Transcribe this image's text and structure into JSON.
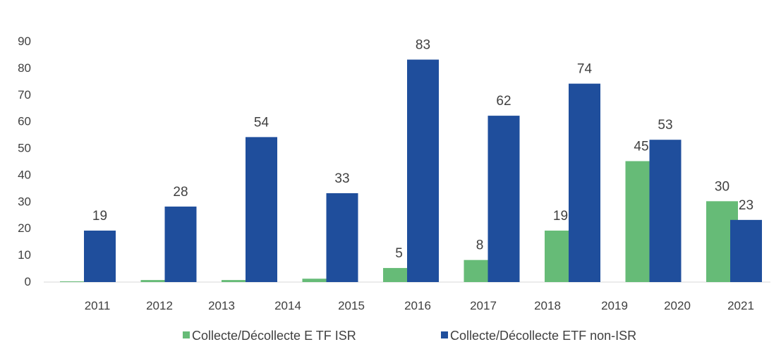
{
  "chart_data": {
    "type": "bar",
    "categories": [
      "2011",
      "2012",
      "2013",
      "2014",
      "2015",
      "2016",
      "2017",
      "2018",
      "2019",
      "2020",
      "2021"
    ],
    "series": [
      {
        "name": "Collecte/Décollecte E TF ISR",
        "color": "#66bb77",
        "values": [
          0,
          0.5,
          0.5,
          1,
          5,
          8,
          19,
          45,
          30,
          null,
          null
        ],
        "labels": [
          null,
          null,
          null,
          null,
          "5",
          "8",
          "19",
          "45",
          "30",
          null,
          null
        ]
      },
      {
        "name": "Collecte/Décollecte ETF non-ISR",
        "color": "#1f4e9c",
        "values": [
          19,
          28,
          54,
          33,
          83,
          62,
          74,
          53,
          23,
          null,
          null
        ],
        "labels": [
          "19",
          "28",
          "54",
          "33",
          "83",
          "62",
          "74",
          "53",
          "23",
          null,
          null
        ]
      }
    ],
    "yticks": [
      "0",
      "10",
      "20",
      "30",
      "40",
      "50",
      "60",
      "70",
      "80",
      "90"
    ],
    "ylim": [
      0,
      90
    ],
    "legend": "bottom",
    "grid": false
  }
}
